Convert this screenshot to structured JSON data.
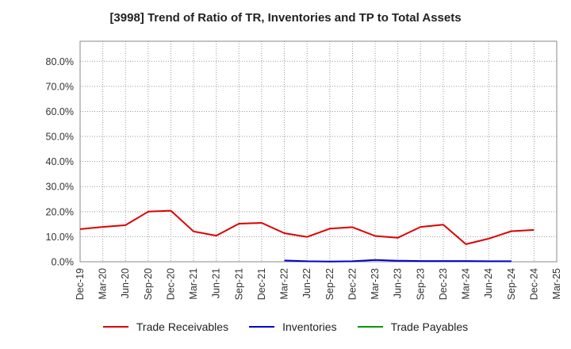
{
  "chart_data": {
    "type": "line",
    "title": "[3998]  Trend of Ratio of TR, Inventories and TP to Total Assets",
    "xlabel": "",
    "ylabel": "",
    "x": [
      "Dec-19",
      "Mar-20",
      "Jun-20",
      "Sep-20",
      "Dec-20",
      "Mar-21",
      "Jun-21",
      "Sep-21",
      "Dec-21",
      "Mar-22",
      "Jun-22",
      "Sep-22",
      "Dec-22",
      "Mar-23",
      "Jun-23",
      "Sep-23",
      "Dec-23",
      "Mar-24",
      "Jun-24",
      "Sep-24",
      "Dec-24",
      "Mar-25"
    ],
    "ylim": [
      0,
      88
    ],
    "yticks": [
      0,
      10,
      20,
      30,
      40,
      50,
      60,
      70,
      80
    ],
    "ytick_labels": [
      "0.0%",
      "10.0%",
      "20.0%",
      "30.0%",
      "40.0%",
      "50.0%",
      "60.0%",
      "70.0%",
      "80.0%"
    ],
    "grid": true,
    "legend_position": "bottom",
    "series": [
      {
        "name": "Trade Receivables",
        "color": "#dd0000",
        "values": [
          13.0,
          13.9,
          14.6,
          20.0,
          20.4,
          12.1,
          10.4,
          15.2,
          15.5,
          11.4,
          9.9,
          13.2,
          13.8,
          10.3,
          9.6,
          13.9,
          14.8,
          7.0,
          9.2,
          12.2,
          12.7,
          null
        ]
      },
      {
        "name": "Inventories",
        "color": "#0000cc",
        "values": [
          null,
          null,
          null,
          null,
          null,
          null,
          null,
          null,
          null,
          0.5,
          0.2,
          0.1,
          0.2,
          0.7,
          0.4,
          0.3,
          0.3,
          0.3,
          0.2,
          0.2,
          null,
          null
        ]
      },
      {
        "name": "Trade Payables",
        "color": "#009900",
        "values": [
          null,
          null,
          null,
          null,
          null,
          null,
          null,
          null,
          null,
          null,
          null,
          null,
          null,
          null,
          null,
          null,
          null,
          null,
          null,
          null,
          null,
          null
        ]
      }
    ]
  }
}
